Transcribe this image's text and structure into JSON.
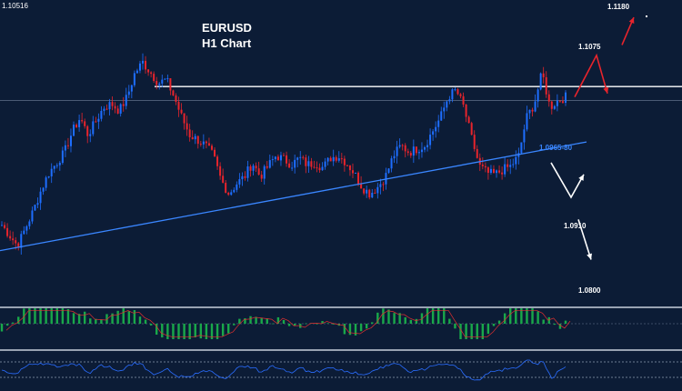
{
  "chart_data": {
    "type": "candlestick",
    "title": "EURUSD",
    "subtitle": "H1 Chart",
    "top_price_label": "1.10516",
    "annotations": [
      {
        "label": "1.1180",
        "price": 1.118
      },
      {
        "label": "1.1075",
        "price": 1.1075
      },
      {
        "label": "1.0965-80",
        "price": 1.0972
      },
      {
        "label": "1.0910",
        "price": 1.091
      },
      {
        "label": "1.0800",
        "price": 1.08
      }
    ],
    "resistance_level": 1.1075,
    "reference_level": 1.1055,
    "trendline": {
      "start_price": 1.0838,
      "end_price": 1.0995
    },
    "price_range": [
      1.076,
      1.12
    ],
    "projections": [
      {
        "color": "#e8242c",
        "path": [
          1.106,
          1.112,
          1.1065
        ]
      },
      {
        "color": "#e8242c",
        "path": [
          1.1135,
          1.1175
        ]
      },
      {
        "color": "#ffffff",
        "path": [
          1.0965,
          1.0915,
          1.0948
        ]
      },
      {
        "color": "#ffffff",
        "path": [
          1.0883,
          1.0825
        ]
      }
    ],
    "close_path": [
      1.0875,
      1.086,
      1.0845,
      1.087,
      1.0895,
      1.0925,
      1.095,
      1.0965,
      1.098,
      1.101,
      1.103,
      1.1005,
      1.1025,
      1.1045,
      1.105,
      1.104,
      1.106,
      1.1095,
      1.111,
      1.1095,
      1.108,
      1.1085,
      1.106,
      1.103,
      1.1005,
      1.0998,
      1.099,
      1.0975,
      1.094,
      1.092,
      1.0935,
      1.0945,
      1.0965,
      1.0945,
      1.096,
      1.0975,
      1.097,
      1.0962,
      1.0972,
      1.0962,
      1.0965,
      1.0958,
      1.0972,
      1.0975,
      1.0965,
      1.095,
      1.093,
      1.092,
      1.093,
      1.0945,
      1.0975,
      1.099,
      1.098,
      1.0985,
      1.099,
      1.101,
      1.103,
      1.106,
      1.107,
      1.1045,
      1.1,
      1.096,
      1.095,
      1.0948,
      1.0955,
      1.096,
      1.0975,
      1.103,
      1.105,
      1.1095,
      1.1045,
      1.1055,
      1.106
    ],
    "colors": {
      "background": "#0c1c36",
      "bull": "#1e6eff",
      "bear": "#e8242c",
      "trendline": "#3a86ff",
      "macd": "#19a84a",
      "signal": "#e03030",
      "rsi": "#2a6dff"
    }
  }
}
